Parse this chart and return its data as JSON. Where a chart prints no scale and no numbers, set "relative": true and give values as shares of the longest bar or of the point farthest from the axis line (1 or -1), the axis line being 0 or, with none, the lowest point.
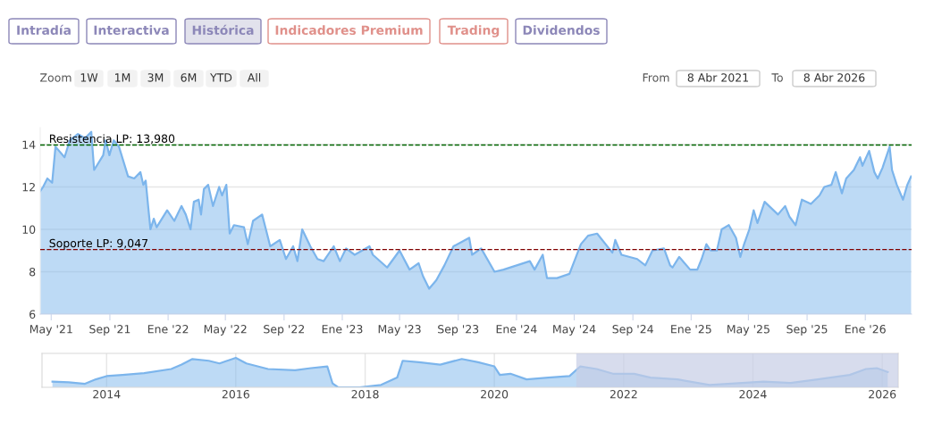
{
  "chart_data": [
    {
      "type": "area",
      "annotations": [
        "Intradía",
        "Interactiva",
        "Histórica",
        "Indicadores Premium",
        "Trading",
        "Dividendos",
        "Zoom",
        "1W",
        "1M",
        "3M",
        "6M",
        "YTD",
        "All",
        "From",
        "8 Abr 2021",
        "To",
        "8 Abr 2026"
      ],
      "series": [
        {
          "color": "#7cb5ec",
          "x": [
            "2021-04-08",
            "2021-04-14",
            "2021-04-23",
            "2021-05-03",
            "2021-05-10",
            "2021-05-29",
            "2021-06-09",
            "2021-06-26",
            "2021-07-11",
            "2021-07-24",
            "2021-07-30",
            "2021-08-18",
            "2021-08-23",
            "2021-08-31",
            "2021-09-09",
            "2021-09-20",
            "2021-10-09",
            "2021-10-22",
            "2021-11-04",
            "2021-11-10",
            "2021-11-15",
            "2021-11-21",
            "2021-11-25",
            "2021-12-02",
            "2021-12-08",
            "2021-12-30",
            "2022-01-14",
            "2022-01-29",
            "2022-02-07",
            "2022-02-17",
            "2022-02-24",
            "2022-03-06",
            "2022-03-11",
            "2022-03-17",
            "2022-03-26",
            "2022-04-05",
            "2022-04-18",
            "2022-04-24",
            "2022-05-03",
            "2022-05-10",
            "2022-05-19",
            "2022-06-09",
            "2022-06-17",
            "2022-06-28",
            "2022-07-17",
            "2022-08-03",
            "2022-08-23",
            "2022-09-05",
            "2022-09-20",
            "2022-09-29",
            "2022-10-09",
            "2022-10-26",
            "2022-11-10",
            "2022-11-23",
            "2022-12-08",
            "2022-12-14",
            "2022-12-27",
            "2023-01-09",
            "2023-01-27",
            "2023-02-27",
            "2023-03-06",
            "2023-04-05",
            "2023-05-01",
            "2023-05-22",
            "2023-06-10",
            "2023-06-19",
            "2023-07-02",
            "2023-07-17",
            "2023-08-03",
            "2023-08-22",
            "2023-09-24",
            "2023-09-30",
            "2023-10-19",
            "2023-11-16",
            "2023-12-05",
            "2024-01-29",
            "2024-02-08",
            "2024-02-25",
            "2024-03-05",
            "2024-03-26",
            "2024-04-21",
            "2024-05-15",
            "2024-05-30",
            "2024-06-18",
            "2024-07-20",
            "2024-07-26",
            "2024-08-08",
            "2024-09-10",
            "2024-09-27",
            "2024-10-12",
            "2024-11-05",
            "2024-11-18",
            "2024-11-23",
            "2024-12-07",
            "2024-12-30",
            "2025-01-14",
            "2025-01-23",
            "2025-02-02",
            "2025-02-11",
            "2025-02-24",
            "2025-03-06",
            "2025-03-21",
            "2025-04-05",
            "2025-04-14",
            "2025-04-22",
            "2025-05-03",
            "2025-05-12",
            "2025-05-20",
            "2025-06-04",
            "2025-07-02",
            "2025-07-17",
            "2025-07-26",
            "2025-08-08",
            "2025-08-21",
            "2025-09-09",
            "2025-09-27",
            "2025-10-07",
            "2025-10-22",
            "2025-10-31",
            "2025-11-13",
            "2025-11-22",
            "2025-12-08",
            "2025-12-21",
            "2025-12-26",
            "2026-01-09",
            "2026-01-20",
            "2026-01-27",
            "2026-02-06",
            "2026-02-21",
            "2026-02-26",
            "2026-03-08",
            "2026-03-21",
            "2026-03-30",
            "2026-04-07"
          ],
          "values": [
            11.8,
            12.0,
            12.4,
            12.2,
            13.9,
            13.4,
            14.2,
            14.5,
            14.3,
            14.6,
            12.8,
            13.5,
            14.2,
            13.5,
            14.2,
            13.9,
            12.5,
            12.4,
            12.7,
            12.1,
            12.3,
            10.9,
            10.0,
            10.5,
            10.1,
            10.9,
            10.4,
            11.1,
            10.7,
            10.0,
            11.3,
            11.4,
            10.7,
            11.9,
            12.1,
            11.1,
            12.0,
            11.6,
            12.1,
            9.8,
            10.2,
            10.1,
            9.3,
            10.4,
            10.7,
            9.2,
            9.5,
            8.6,
            9.2,
            8.5,
            10.0,
            9.2,
            8.6,
            8.5,
            9.0,
            9.2,
            8.5,
            9.1,
            8.8,
            9.2,
            8.8,
            8.2,
            9.0,
            8.1,
            8.4,
            7.8,
            7.2,
            7.6,
            8.3,
            9.2,
            9.6,
            8.8,
            9.1,
            8.0,
            8.1,
            8.5,
            8.1,
            8.8,
            7.7,
            7.7,
            7.9,
            9.3,
            9.7,
            9.8,
            8.9,
            9.5,
            8.8,
            8.6,
            8.3,
            9.0,
            9.1,
            8.3,
            8.2,
            8.7,
            8.1,
            8.1,
            8.6,
            9.3,
            9.0,
            9.0,
            10.0,
            10.2,
            9.6,
            8.7,
            9.3,
            10.0,
            10.9,
            10.3,
            11.3,
            10.7,
            11.1,
            10.6,
            10.2,
            11.4,
            11.2,
            11.6,
            12.0,
            12.1,
            12.7,
            11.7,
            12.4,
            12.8,
            13.4,
            13.0,
            13.7,
            12.7,
            12.4,
            12.9,
            13.9,
            12.8,
            12.1,
            11.4,
            12.1,
            12.5
          ]
        }
      ],
      "xlim": [
        "2021-04-08",
        "2026-04-08"
      ],
      "xticks": [
        {
          "value": "2021-05-01",
          "label": "May '21"
        },
        {
          "value": "2021-09-01",
          "label": "Sep '21"
        },
        {
          "value": "2022-01-01",
          "label": "Ene '22"
        },
        {
          "value": "2022-05-01",
          "label": "May '22"
        },
        {
          "value": "2022-09-01",
          "label": "Sep '22"
        },
        {
          "value": "2023-01-01",
          "label": "Ene '23"
        },
        {
          "value": "2023-05-01",
          "label": "May '23"
        },
        {
          "value": "2023-09-01",
          "label": "Sep '23"
        },
        {
          "value": "2024-01-01",
          "label": "Ene '24"
        },
        {
          "value": "2024-05-01",
          "label": "May '24"
        },
        {
          "value": "2024-09-01",
          "label": "Sep '24"
        },
        {
          "value": "2025-01-01",
          "label": "Ene '25"
        },
        {
          "value": "2025-05-01",
          "label": "May '25"
        },
        {
          "value": "2025-09-01",
          "label": "Sep '25"
        },
        {
          "value": "2026-01-01",
          "label": "Ene '26"
        }
      ],
      "ylim": [
        6,
        14.8
      ],
      "yticks": [
        6,
        8,
        10,
        12,
        14
      ],
      "ref_lines": [
        {
          "axis": "y",
          "value": 13.98,
          "label": "Resistencia LP: 13,980",
          "color": "#006400",
          "line_style": "dashed"
        },
        {
          "axis": "y",
          "value": 9.047,
          "label": "Soporte LP: 9,047",
          "color": "#800000",
          "line_style": "dashed"
        }
      ],
      "grid": "y"
    },
    {
      "type": "area",
      "relative": true,
      "series": [
        {
          "color": "#7cb5ec",
          "x": [
            "2013-03",
            "2013-06",
            "2013-09",
            "2013-11",
            "2014-01",
            "2014-04",
            "2014-08",
            "2015-01",
            "2015-03",
            "2015-05",
            "2015-08",
            "2015-10",
            "2016-01",
            "2016-03",
            "2016-07",
            "2016-12",
            "2017-03",
            "2017-06",
            "2017-07",
            "2017-08",
            "2017-12",
            "2018-04",
            "2018-07",
            "2018-08",
            "2018-11",
            "2019-03",
            "2019-07",
            "2019-10",
            "2020-01",
            "2020-02",
            "2020-04",
            "2020-07",
            "2020-11",
            "2021-03",
            "2021-05",
            "2021-08",
            "2021-11",
            "2022-03",
            "2022-06",
            "2022-11",
            "2023-05",
            "2023-11",
            "2024-03",
            "2024-08",
            "2025-01",
            "2025-07",
            "2025-10",
            "2025-12",
            "2026-02"
          ],
          "values": [
            0.19,
            0.17,
            0.12,
            0.27,
            0.38,
            0.42,
            0.48,
            0.62,
            0.77,
            0.96,
            0.9,
            0.81,
            1,
            0.81,
            0.62,
            0.58,
            0.65,
            0.71,
            0.13,
            0,
            0,
            0.08,
            0.33,
            0.9,
            0.85,
            0.77,
            0.96,
            0.85,
            0.71,
            0.42,
            0.46,
            0.27,
            0.33,
            0.38,
            0.71,
            0.62,
            0.46,
            0.46,
            0.33,
            0.27,
            0.08,
            0.15,
            0.19,
            0.15,
            0.27,
            0.42,
            0.62,
            0.65,
            0.52
          ]
        }
      ],
      "xlim": [
        "2013-01",
        "2026-04"
      ],
      "xticks": [
        {
          "value": "2014",
          "label": "2014"
        },
        {
          "value": "2016",
          "label": "2016"
        },
        {
          "value": "2018",
          "label": "2018"
        },
        {
          "value": "2020",
          "label": "2020"
        },
        {
          "value": "2022",
          "label": "2022"
        },
        {
          "value": "2024",
          "label": "2024"
        },
        {
          "value": "2026",
          "label": "2026"
        }
      ],
      "bands": [
        {
          "axis": "x",
          "from": "2021-04-08",
          "to": "2026-04-08",
          "color": "#c6cde6"
        }
      ],
      "grid": "x"
    }
  ]
}
